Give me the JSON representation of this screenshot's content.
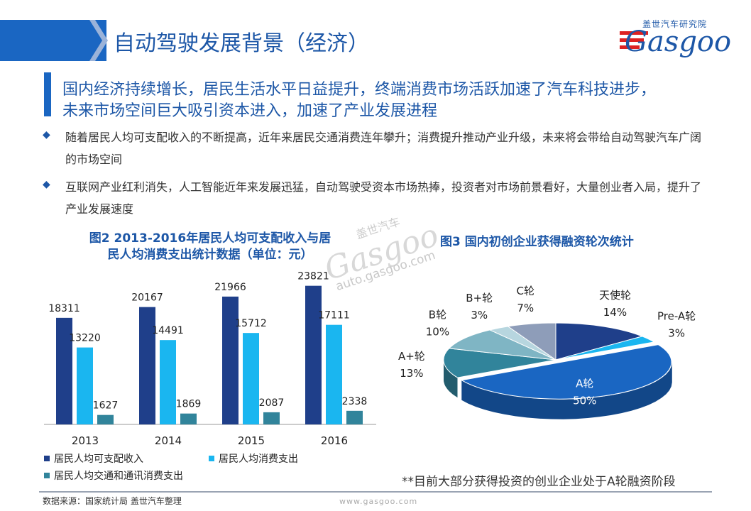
{
  "header": {
    "title": "自动驾驶发展背景（经济）"
  },
  "logo": {
    "subtitle": "盖世汽车研究院",
    "wordmark": "Gasgoo"
  },
  "headline": {
    "line1": "国内经济持续增长，居民生活水平日益提升，终端消费市场活跃加速了汽车科技进步，",
    "line2": "未来市场空间巨大吸引资本进入，加速了产业发展进程"
  },
  "bullets": [
    {
      "marker": "◆",
      "text": "随着居民人均可支配收入的不断提高，近年来居民交通消费连年攀升；消费提升推动产业升级，未来将会带给自动驾驶汽车广阔的市场空间"
    },
    {
      "marker": "◆",
      "text": "互联网产业红利消失，人工智能近年来发展迅猛，自动驾驶受资本市场热捧，投资者对市场前景看好，大量创业者入局，提升了产业发展速度"
    }
  ],
  "watermark": {
    "sub": "盖世汽车",
    "logo": "Gasgoo",
    "url": "auto.gasgoo.com"
  },
  "colors": {
    "brand": "#1d57a7",
    "dark_blue": "#1f3f8a",
    "light_blue": "#1ab6f0",
    "teal": "#31849b",
    "header_band": "#1a66c2"
  },
  "chart_data": [
    {
      "type": "bar",
      "title_line1": "图2 2013-2016年居民人均可支配收入与居",
      "title_line2": "民人均消费支出统计数据（单位：元）",
      "categories": [
        "2013",
        "2014",
        "2015",
        "2016"
      ],
      "series": [
        {
          "name": "居民人均可支配收入",
          "values": [
            18311,
            20167,
            21966,
            23821
          ],
          "color": "#1f3f8a"
        },
        {
          "name": "居民人均消费支出",
          "values": [
            13220,
            14491,
            15712,
            17111
          ],
          "color": "#1ab6f0"
        },
        {
          "name": "居民人均交通和通讯消费支出",
          "values": [
            1627,
            1869,
            2087,
            2338
          ],
          "color": "#31849b"
        }
      ],
      "ylim": [
        0,
        25000
      ],
      "grid": false,
      "legend_position": "bottom"
    },
    {
      "type": "pie",
      "title": "图3 国内初创企业获得融资轮次统计",
      "slices": [
        {
          "label": "天使轮",
          "value": 14,
          "display": "14%",
          "color": "#1f3f8a"
        },
        {
          "label": "Pre-A轮",
          "value": 3,
          "display": "3%",
          "color": "#1ab6f0"
        },
        {
          "label": "A轮",
          "value": 50,
          "display": "50%",
          "color": "#1a66c2"
        },
        {
          "label": "A+轮",
          "value": 13,
          "display": "13%",
          "color": "#31849b"
        },
        {
          "label": "B轮",
          "value": 10,
          "display": "10%",
          "color": "#7fb5c4"
        },
        {
          "label": "B+轮",
          "value": 3,
          "display": "3%",
          "color": "#b7d6df"
        },
        {
          "label": "C轮",
          "value": 7,
          "display": "7%",
          "color": "#8e9db9"
        }
      ],
      "exploded": "A轮",
      "style": "3d"
    }
  ],
  "footnote": "**目前大部分获得投资的创业企业处于A轮融资阶段",
  "footer": {
    "source": "数据来源：国家统计局 盖世汽车整理",
    "site": "www.gasgoo.com"
  }
}
